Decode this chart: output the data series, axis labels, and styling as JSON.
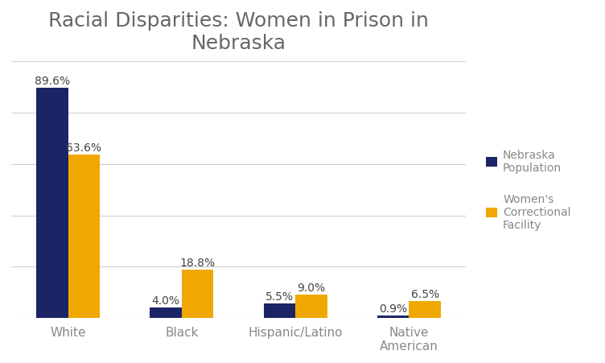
{
  "title": "Racial Disparities: Women in Prison in\nNebraska",
  "categories": [
    "White",
    "Black",
    "Hispanic/Latino",
    "Native\nAmerican"
  ],
  "nebraska_population": [
    89.6,
    4.0,
    5.5,
    0.9
  ],
  "womens_correctional": [
    63.6,
    18.8,
    9.0,
    6.5
  ],
  "bar_color_nebraska": "#1a2466",
  "bar_color_womens": "#f0a800",
  "background_color": "#ffffff",
  "grid_color": "#d0d0d0",
  "title_fontsize": 18,
  "tick_fontsize": 11,
  "label_fontsize": 10,
  "legend_fontsize": 10,
  "title_color": "#666666",
  "tick_color": "#888888",
  "label_color": "#444444",
  "ylim": [
    0,
    100
  ],
  "legend_labels": [
    "Nebraska\nPopulation",
    "Women's\nCorrectional\nFacility"
  ],
  "bar_width": 0.28
}
